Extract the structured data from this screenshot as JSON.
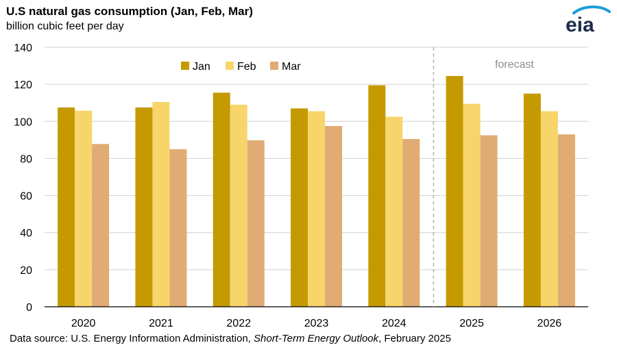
{
  "header": {
    "title": "U.S natural gas consumption (Jan, Feb, Mar)",
    "subtitle": "billion cubic feet per day"
  },
  "logo": {
    "text": "eia",
    "icon": "eia-logo-icon"
  },
  "footer": {
    "source_prefix": "Data source: U.S. Energy Information Administration, ",
    "source_italic": "Short-Term Energy Outlook",
    "source_suffix": ", February 2025"
  },
  "colors": {
    "Jan": "#c49a00",
    "Feb": "#f7d56b",
    "Mar": "#e0ac74",
    "grid": "#d0d0d0",
    "forecast_line": "#b0b0b0"
  },
  "chart_data": {
    "type": "bar",
    "title": "U.S natural gas consumption (Jan, Feb, Mar)",
    "subtitle": "billion cubic feet per day",
    "categories": [
      "2020",
      "2021",
      "2022",
      "2023",
      "2024",
      "2025",
      "2026"
    ],
    "series": [
      {
        "name": "Jan",
        "values": [
          107.5,
          107.5,
          115.5,
          107,
          119.5,
          124.5,
          115
        ]
      },
      {
        "name": "Feb",
        "values": [
          105.8,
          110.5,
          109,
          105.5,
          102.5,
          109.5,
          105.5
        ]
      },
      {
        "name": "Mar",
        "values": [
          87.8,
          85,
          89.8,
          97.5,
          90.5,
          92.5,
          93
        ]
      }
    ],
    "ylim": [
      0,
      140
    ],
    "yticks": [
      0,
      20,
      40,
      60,
      80,
      100,
      120,
      140
    ],
    "grid": true,
    "legend_position": "top-left",
    "forecast": {
      "label": "forecast",
      "starts_at": "2025"
    }
  }
}
